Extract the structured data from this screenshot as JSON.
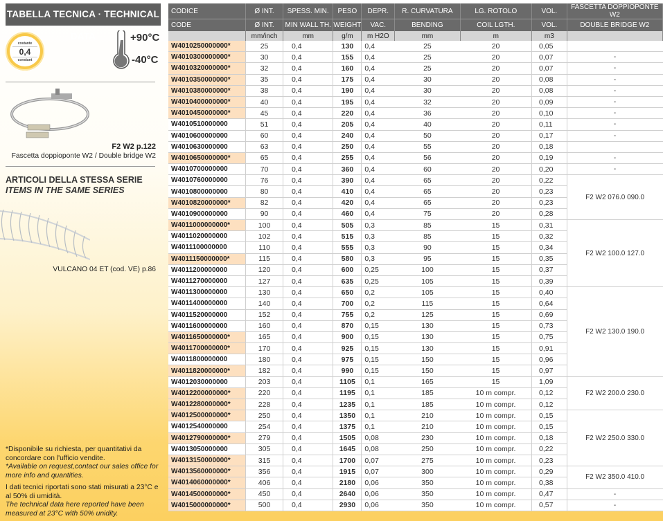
{
  "left": {
    "title": "TABELLA TECNICA · TECHNICAL DATA",
    "badge": {
      "top": "costante",
      "value": "0,4",
      "bottom": "constant"
    },
    "temp_max": "+90°C",
    "temp_min": "-40°C",
    "accessory_ref": "F2 W2  p.122",
    "accessory_caption": "Fascetta doppioponte W2 / Double bridge W2",
    "series_title_it": "ARTICOLI DELLA STESSA SERIE",
    "series_title_en": "ITEMS IN THE SAME SERIES",
    "series_ref": "VULCANO 04 ET (cod. VE) p.86",
    "notes": [
      "*Disponibile su richiesta, per quantitativi da concordare con l'ufficio vendite.",
      "*Available on request,contact our sales office for more info and quantities.",
      "I dati tecnici riportati sono stati misurati a 23°C e al 50% di umidità.",
      "The technical data here reported have been measured at 23°C with 50% unidity."
    ]
  },
  "colors": {
    "header": "#6a6a6a",
    "highlight": "#fde0c0",
    "accent": "#fcd060"
  },
  "table": {
    "headers_it": [
      "CODICE",
      "Ø INT.",
      "SPESS. MIN.",
      "PESO",
      "DEPR.",
      "R. CURVATURA",
      "LG. ROTOLO",
      "VOL.",
      "FASCETTA DOPPIOPONTE W2"
    ],
    "headers_en": [
      "CODE",
      "Ø INT.",
      "MIN WALL TH.",
      "WEIGHT",
      "VAC.",
      "BENDING",
      "COIL LGTH.",
      "VOL.",
      "DOUBLE BRIDGE W2"
    ],
    "units": [
      "",
      "mm/inch",
      "mm",
      "g/m",
      "m H2O",
      "mm",
      "m",
      "m3",
      ""
    ],
    "rows": [
      [
        "W4010250000000*",
        "25",
        "0,4",
        "130",
        "0,4",
        "25",
        "20",
        "0,05"
      ],
      [
        "W4010300000000*",
        "30",
        "0,4",
        "155",
        "0,4",
        "25",
        "20",
        "0,07"
      ],
      [
        "W4010320000000*",
        "32",
        "0,4",
        "160",
        "0,4",
        "25",
        "20",
        "0,07"
      ],
      [
        "W4010350000000*",
        "35",
        "0,4",
        "175",
        "0,4",
        "30",
        "20",
        "0,08"
      ],
      [
        "W4010380000000*",
        "38",
        "0,4",
        "190",
        "0,4",
        "30",
        "20",
        "0,08"
      ],
      [
        "W4010400000000*",
        "40",
        "0,4",
        "195",
        "0,4",
        "32",
        "20",
        "0,09"
      ],
      [
        "W4010450000000*",
        "45",
        "0,4",
        "220",
        "0,4",
        "36",
        "20",
        "0,10"
      ],
      [
        "W4010510000000",
        "51",
        "0,4",
        "205",
        "0,4",
        "40",
        "20",
        "0,11"
      ],
      [
        "W4010600000000",
        "60",
        "0,4",
        "240",
        "0,4",
        "50",
        "20",
        "0,17"
      ],
      [
        "W4010630000000",
        "63",
        "0,4",
        "250",
        "0,4",
        "55",
        "20",
        "0,18"
      ],
      [
        "W4010650000000*",
        "65",
        "0,4",
        "255",
        "0,4",
        "56",
        "20",
        "0,19"
      ],
      [
        "W4010700000000",
        "70",
        "0,4",
        "360",
        "0,4",
        "60",
        "20",
        "0,20"
      ],
      [
        "W4010760000000",
        "76",
        "0,4",
        "390",
        "0,4",
        "65",
        "20",
        "0,22"
      ],
      [
        "W4010800000000",
        "80",
        "0,4",
        "410",
        "0,4",
        "65",
        "20",
        "0,23"
      ],
      [
        "W4010820000000*",
        "82",
        "0,4",
        "420",
        "0,4",
        "65",
        "20",
        "0,23"
      ],
      [
        "W4010900000000",
        "90",
        "0,4",
        "460",
        "0,4",
        "75",
        "20",
        "0,28"
      ],
      [
        "W4011000000000*",
        "100",
        "0,4",
        "505",
        "0,3",
        "85",
        "15",
        "0,31"
      ],
      [
        "W4011020000000",
        "102",
        "0,4",
        "515",
        "0,3",
        "85",
        "15",
        "0,32"
      ],
      [
        "W4011100000000",
        "110",
        "0,4",
        "555",
        "0,3",
        "90",
        "15",
        "0,34"
      ],
      [
        "W4011150000000*",
        "115",
        "0,4",
        "580",
        "0,3",
        "95",
        "15",
        "0,35"
      ],
      [
        "W4011200000000",
        "120",
        "0,4",
        "600",
        "0,25",
        "100",
        "15",
        "0,37"
      ],
      [
        "W4011270000000",
        "127",
        "0,4",
        "635",
        "0,25",
        "105",
        "15",
        "0,39"
      ],
      [
        "W4011300000000",
        "130",
        "0,4",
        "650",
        "0,2",
        "105",
        "15",
        "0,40"
      ],
      [
        "W4011400000000",
        "140",
        "0,4",
        "700",
        "0,2",
        "115",
        "15",
        "0,64"
      ],
      [
        "W4011520000000",
        "152",
        "0,4",
        "755",
        "0,2",
        "125",
        "15",
        "0,69"
      ],
      [
        "W4011600000000",
        "160",
        "0,4",
        "870",
        "0,15",
        "130",
        "15",
        "0,73"
      ],
      [
        "W4011650000000*",
        "165",
        "0,4",
        "900",
        "0,15",
        "130",
        "15",
        "0,75"
      ],
      [
        "W4011700000000*",
        "170",
        "0,4",
        "925",
        "0,15",
        "130",
        "15",
        "0,91"
      ],
      [
        "W4011800000000",
        "180",
        "0,4",
        "975",
        "0,15",
        "150",
        "15",
        "0,96"
      ],
      [
        "W4011820000000*",
        "182",
        "0,4",
        "990",
        "0,15",
        "150",
        "15",
        "0,97"
      ],
      [
        "W4012030000000",
        "203",
        "0,4",
        "1105",
        "0,1",
        "165",
        "15",
        "1,09"
      ],
      [
        "W4012200000000*",
        "220",
        "0,4",
        "1195",
        "0,1",
        "185",
        "10 m compr.",
        "0,12"
      ],
      [
        "W4012280000000*",
        "228",
        "0,4",
        "1235",
        "0,1",
        "185",
        "10 m compr.",
        "0,12"
      ],
      [
        "W4012500000000*",
        "250",
        "0,4",
        "1350",
        "0,1",
        "210",
        "10 m compr.",
        "0,15"
      ],
      [
        "W4012540000000",
        "254",
        "0,4",
        "1375",
        "0,1",
        "210",
        "10 m compr.",
        "0,15"
      ],
      [
        "W4012790000000*",
        "279",
        "0,4",
        "1505",
        "0,08",
        "230",
        "10 m compr.",
        "0,18"
      ],
      [
        "W4013050000000",
        "305",
        "0,4",
        "1645",
        "0,08",
        "250",
        "10 m compr.",
        "0,22"
      ],
      [
        "W4013150000000*",
        "315",
        "0,4",
        "1700",
        "0,07",
        "275",
        "10 m compr.",
        "0,23"
      ],
      [
        "W4013560000000*",
        "356",
        "0,4",
        "1915",
        "0,07",
        "300",
        "10 m compr.",
        "0,29"
      ],
      [
        "W4014060000000*",
        "406",
        "0,4",
        "2180",
        "0,06",
        "350",
        "10 m compr.",
        "0,38"
      ],
      [
        "W4014500000000*",
        "450",
        "0,4",
        "2640",
        "0,06",
        "350",
        "10 m compr.",
        "0,47"
      ],
      [
        "W4015000000000*",
        "500",
        "0,4",
        "2930",
        "0,06",
        "350",
        "10 m compr.",
        "0,57"
      ]
    ],
    "fascetta_groups": [
      {
        "label": "",
        "rows": 1
      },
      {
        "label": "-",
        "rows": 1
      },
      {
        "label": "-",
        "rows": 1
      },
      {
        "label": "-",
        "rows": 1
      },
      {
        "label": "-",
        "rows": 1
      },
      {
        "label": "-",
        "rows": 1
      },
      {
        "label": "-",
        "rows": 1
      },
      {
        "label": "-",
        "rows": 1
      },
      {
        "label": "-",
        "rows": 1
      },
      {
        "label": "",
        "rows": 1
      },
      {
        "label": "-",
        "rows": 1
      },
      {
        "label": "-",
        "rows": 1
      },
      {
        "label": "F2 W2 076.0 090.0",
        "rows": 4
      },
      {
        "label": "F2 W2 100.0 127.0",
        "rows": 6
      },
      {
        "label": "F2 W2 130.0 190.0",
        "rows": 8
      },
      {
        "label": "F2 W2 200.0 230.0",
        "rows": 3
      },
      {
        "label": "F2 W2 250.0 330.0",
        "rows": 5
      },
      {
        "label": "F2 W2 350.0 410.0",
        "rows": 2
      },
      {
        "label": "-",
        "rows": 1
      },
      {
        "label": "-",
        "rows": 1
      }
    ]
  }
}
